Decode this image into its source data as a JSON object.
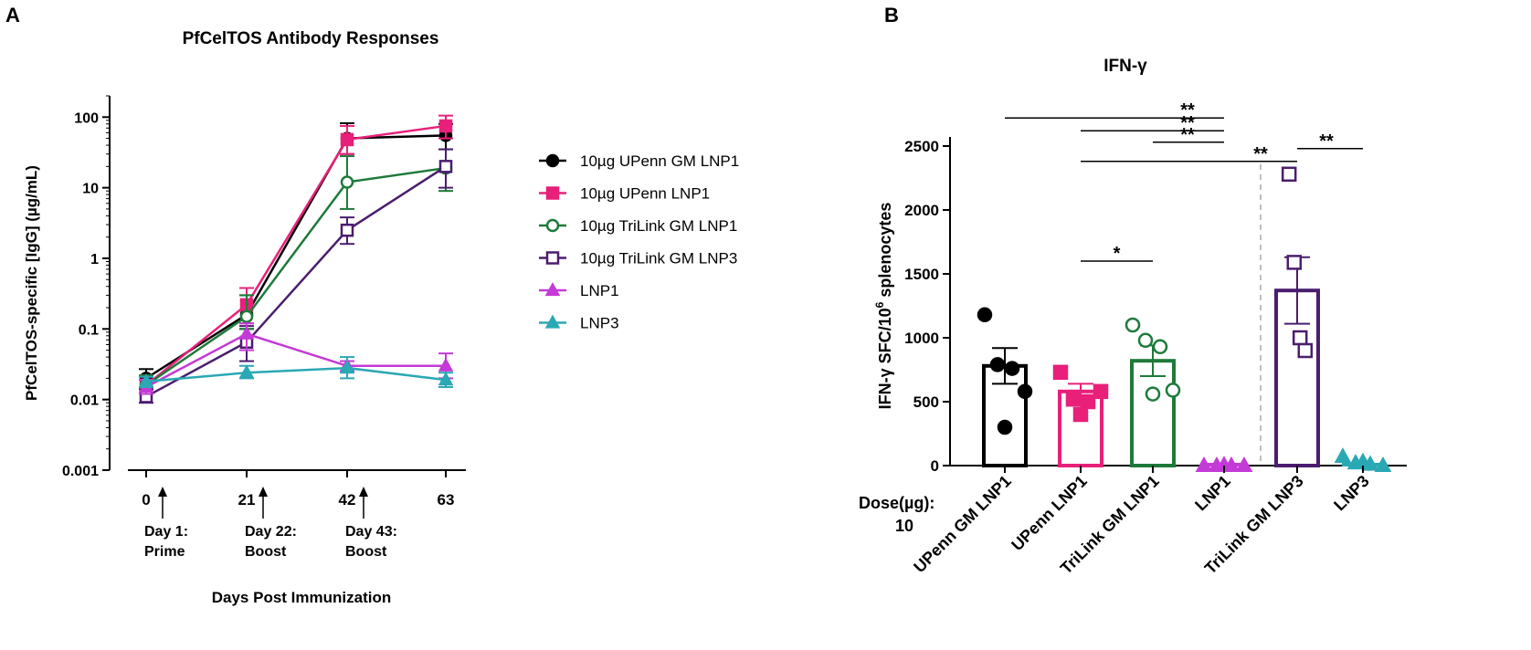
{
  "panel_a_letter": "A",
  "panel_b_letter": "B",
  "colors": {
    "black": "#000000",
    "magenta_red": "#e8207a",
    "green": "#1e7a3a",
    "purple": "#4b1d6e",
    "violet": "#c43ad6",
    "teal": "#2aa8b4",
    "dash": "#aaaaaa"
  },
  "chart_data": [
    {
      "type": "line",
      "title": "PfCelTOS Antibody Responses",
      "xlabel": "Days Post Immunization",
      "ylabel": "PfCelTOS-specific [IgG] (µg/mL)",
      "yscale": "log",
      "ylim": [
        0.001,
        200
      ],
      "x": [
        0,
        21,
        42,
        63
      ],
      "xtick_labels": [
        "0",
        "21",
        "42",
        "63"
      ],
      "ytick_labels": [
        "0.001",
        "0.01",
        "0.1",
        "1",
        "10",
        "100"
      ],
      "ytick_values": [
        0.001,
        0.01,
        0.1,
        1,
        10,
        100
      ],
      "annotations": [
        {
          "x": 0,
          "line1": "Day 1:",
          "line2": "Prime"
        },
        {
          "x": 21,
          "line1": "Day 22:",
          "line2": "Boost"
        },
        {
          "x": 42,
          "line1": "Day 43:",
          "line2": "Boost"
        }
      ],
      "series": [
        {
          "name": "10µg UPenn GM LNP1",
          "color": "#000000",
          "marker": "circle",
          "fill": true,
          "values": [
            0.02,
            0.16,
            50,
            55
          ],
          "err_lo": [
            0.015,
            0.1,
            30,
            35
          ],
          "err_hi": [
            0.027,
            0.3,
            82,
            80
          ]
        },
        {
          "name": "10µg UPenn LNP1",
          "color": "#e8207a",
          "marker": "square",
          "fill": true,
          "values": [
            0.016,
            0.22,
            48,
            75
          ],
          "err_lo": [
            0.012,
            0.12,
            30,
            50
          ],
          "err_hi": [
            0.022,
            0.38,
            75,
            105
          ]
        },
        {
          "name": "10µg TriLink GM LNP1",
          "color": "#1e7a3a",
          "marker": "circle",
          "fill": false,
          "values": [
            0.016,
            0.15,
            12,
            19
          ],
          "err_lo": [
            0.012,
            0.1,
            5,
            9
          ],
          "err_hi": [
            0.022,
            0.3,
            28,
            35
          ]
        },
        {
          "name": "10µg TriLink GM LNP3",
          "color": "#4b1d6e",
          "marker": "square",
          "fill": false,
          "values": [
            0.011,
            0.065,
            2.5,
            20
          ],
          "err_lo": [
            0.009,
            0.035,
            1.6,
            10
          ],
          "err_hi": [
            0.014,
            0.11,
            3.8,
            35
          ]
        },
        {
          "name": "LNP1",
          "color": "#c43ad6",
          "marker": "triangle",
          "fill": true,
          "values": [
            0.015,
            0.085,
            0.03,
            0.03
          ],
          "err_lo": [
            0.012,
            0.05,
            0.025,
            0.02
          ],
          "err_hi": [
            0.019,
            0.12,
            0.035,
            0.045
          ]
        },
        {
          "name": "LNP3",
          "color": "#2aa8b4",
          "marker": "triangle",
          "fill": true,
          "values": [
            0.018,
            0.024,
            0.028,
            0.019
          ],
          "err_lo": [
            0.015,
            0.02,
            0.02,
            0.015
          ],
          "err_hi": [
            0.021,
            0.03,
            0.04,
            0.024
          ]
        }
      ]
    },
    {
      "type": "bar",
      "title": "IFN-γ",
      "ylabel_pre": "IFN-γ SFC/10",
      "ylabel_sup": "6",
      "ylabel_post": " splenocytes",
      "ylim": [
        0,
        2500
      ],
      "ytick_values": [
        0,
        500,
        1000,
        1500,
        2000,
        2500
      ],
      "ytick_labels": [
        "0",
        "500",
        "1000",
        "1500",
        "2000",
        "2500"
      ],
      "dose_label": "Dose(µg):",
      "dose_value": "10",
      "categories": [
        "UPenn GM LNP1",
        "UPenn LNP1",
        "TriLink GM LNP1",
        "LNP1",
        "TriLink GM LNP3",
        "LNP3"
      ],
      "colors": [
        "#000000",
        "#e8207a",
        "#1e7a3a",
        "#c43ad6",
        "#4b1d6e",
        "#2aa8b4"
      ],
      "markers": [
        "circle-filled",
        "square-filled",
        "circle-open",
        "triangle-filled",
        "square-open",
        "triangle-filled"
      ],
      "values": [
        780,
        580,
        820,
        5,
        1370,
        20
      ],
      "sem": [
        140,
        60,
        120,
        3,
        260,
        15
      ],
      "points": [
        [
          1180,
          790,
          760,
          580,
          300
        ],
        [
          730,
          520,
          500,
          580,
          400
        ],
        [
          1100,
          980,
          930,
          590,
          560
        ],
        [
          0,
          0,
          0,
          0,
          5
        ],
        [
          2280,
          1590,
          1000,
          900
        ],
        [
          70,
          20,
          10,
          0,
          30
        ]
      ],
      "significance": [
        {
          "from": 0,
          "to": 3,
          "y": 2720,
          "label": "**"
        },
        {
          "from": 1,
          "to": 3,
          "y": 2620,
          "label": "**"
        },
        {
          "from": 2,
          "to": 3,
          "y": 2530,
          "label": "**"
        },
        {
          "from": 1,
          "to": 4,
          "y": 2380,
          "label": "**"
        },
        {
          "from": 4,
          "to": 5,
          "y": 2480,
          "label": "**"
        },
        {
          "from": 1,
          "to": 2,
          "y": 1600,
          "label": "*"
        }
      ],
      "divider_between": [
        3,
        4
      ]
    }
  ]
}
